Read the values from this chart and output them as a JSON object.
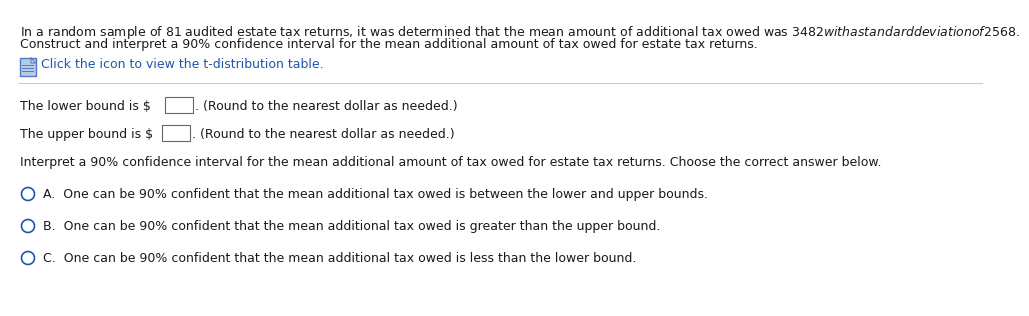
{
  "bg_color": "#ffffff",
  "text_color": "#1a1a1a",
  "blue_color": "#2255aa",
  "gray_line": "#cccccc",
  "para1_line1": "In a random sample of 81 audited estate tax returns, it was determined that the mean amount of additional tax owed was $3482 with a standard deviation of $2568.",
  "para1_line2": "Construct and interpret a 90% confidence interval for the mean additional amount of tax owed for estate tax returns.",
  "icon_text": "Click the icon to view the t-distribution table.",
  "lower_pre": "The lower bound is $",
  "lower_post": ". (Round to the nearest dollar as needed.)",
  "upper_pre": "The upper bound is $",
  "upper_post": ". (Round to the nearest dollar as needed.)",
  "interpret_text": "Interpret a 90% confidence interval for the mean additional amount of tax owed for estate tax returns. Choose the correct answer below.",
  "option_a": "A.  One can be 90% confident that the mean additional tax owed is between the lower and upper bounds.",
  "option_b": "B.  One can be 90% confident that the mean additional tax owed is greater than the upper bound.",
  "option_c": "C.  One can be 90% confident that the mean additional tax owed is less than the lower bound.",
  "font_size": 9.0,
  "icon_font_size": 9.0
}
